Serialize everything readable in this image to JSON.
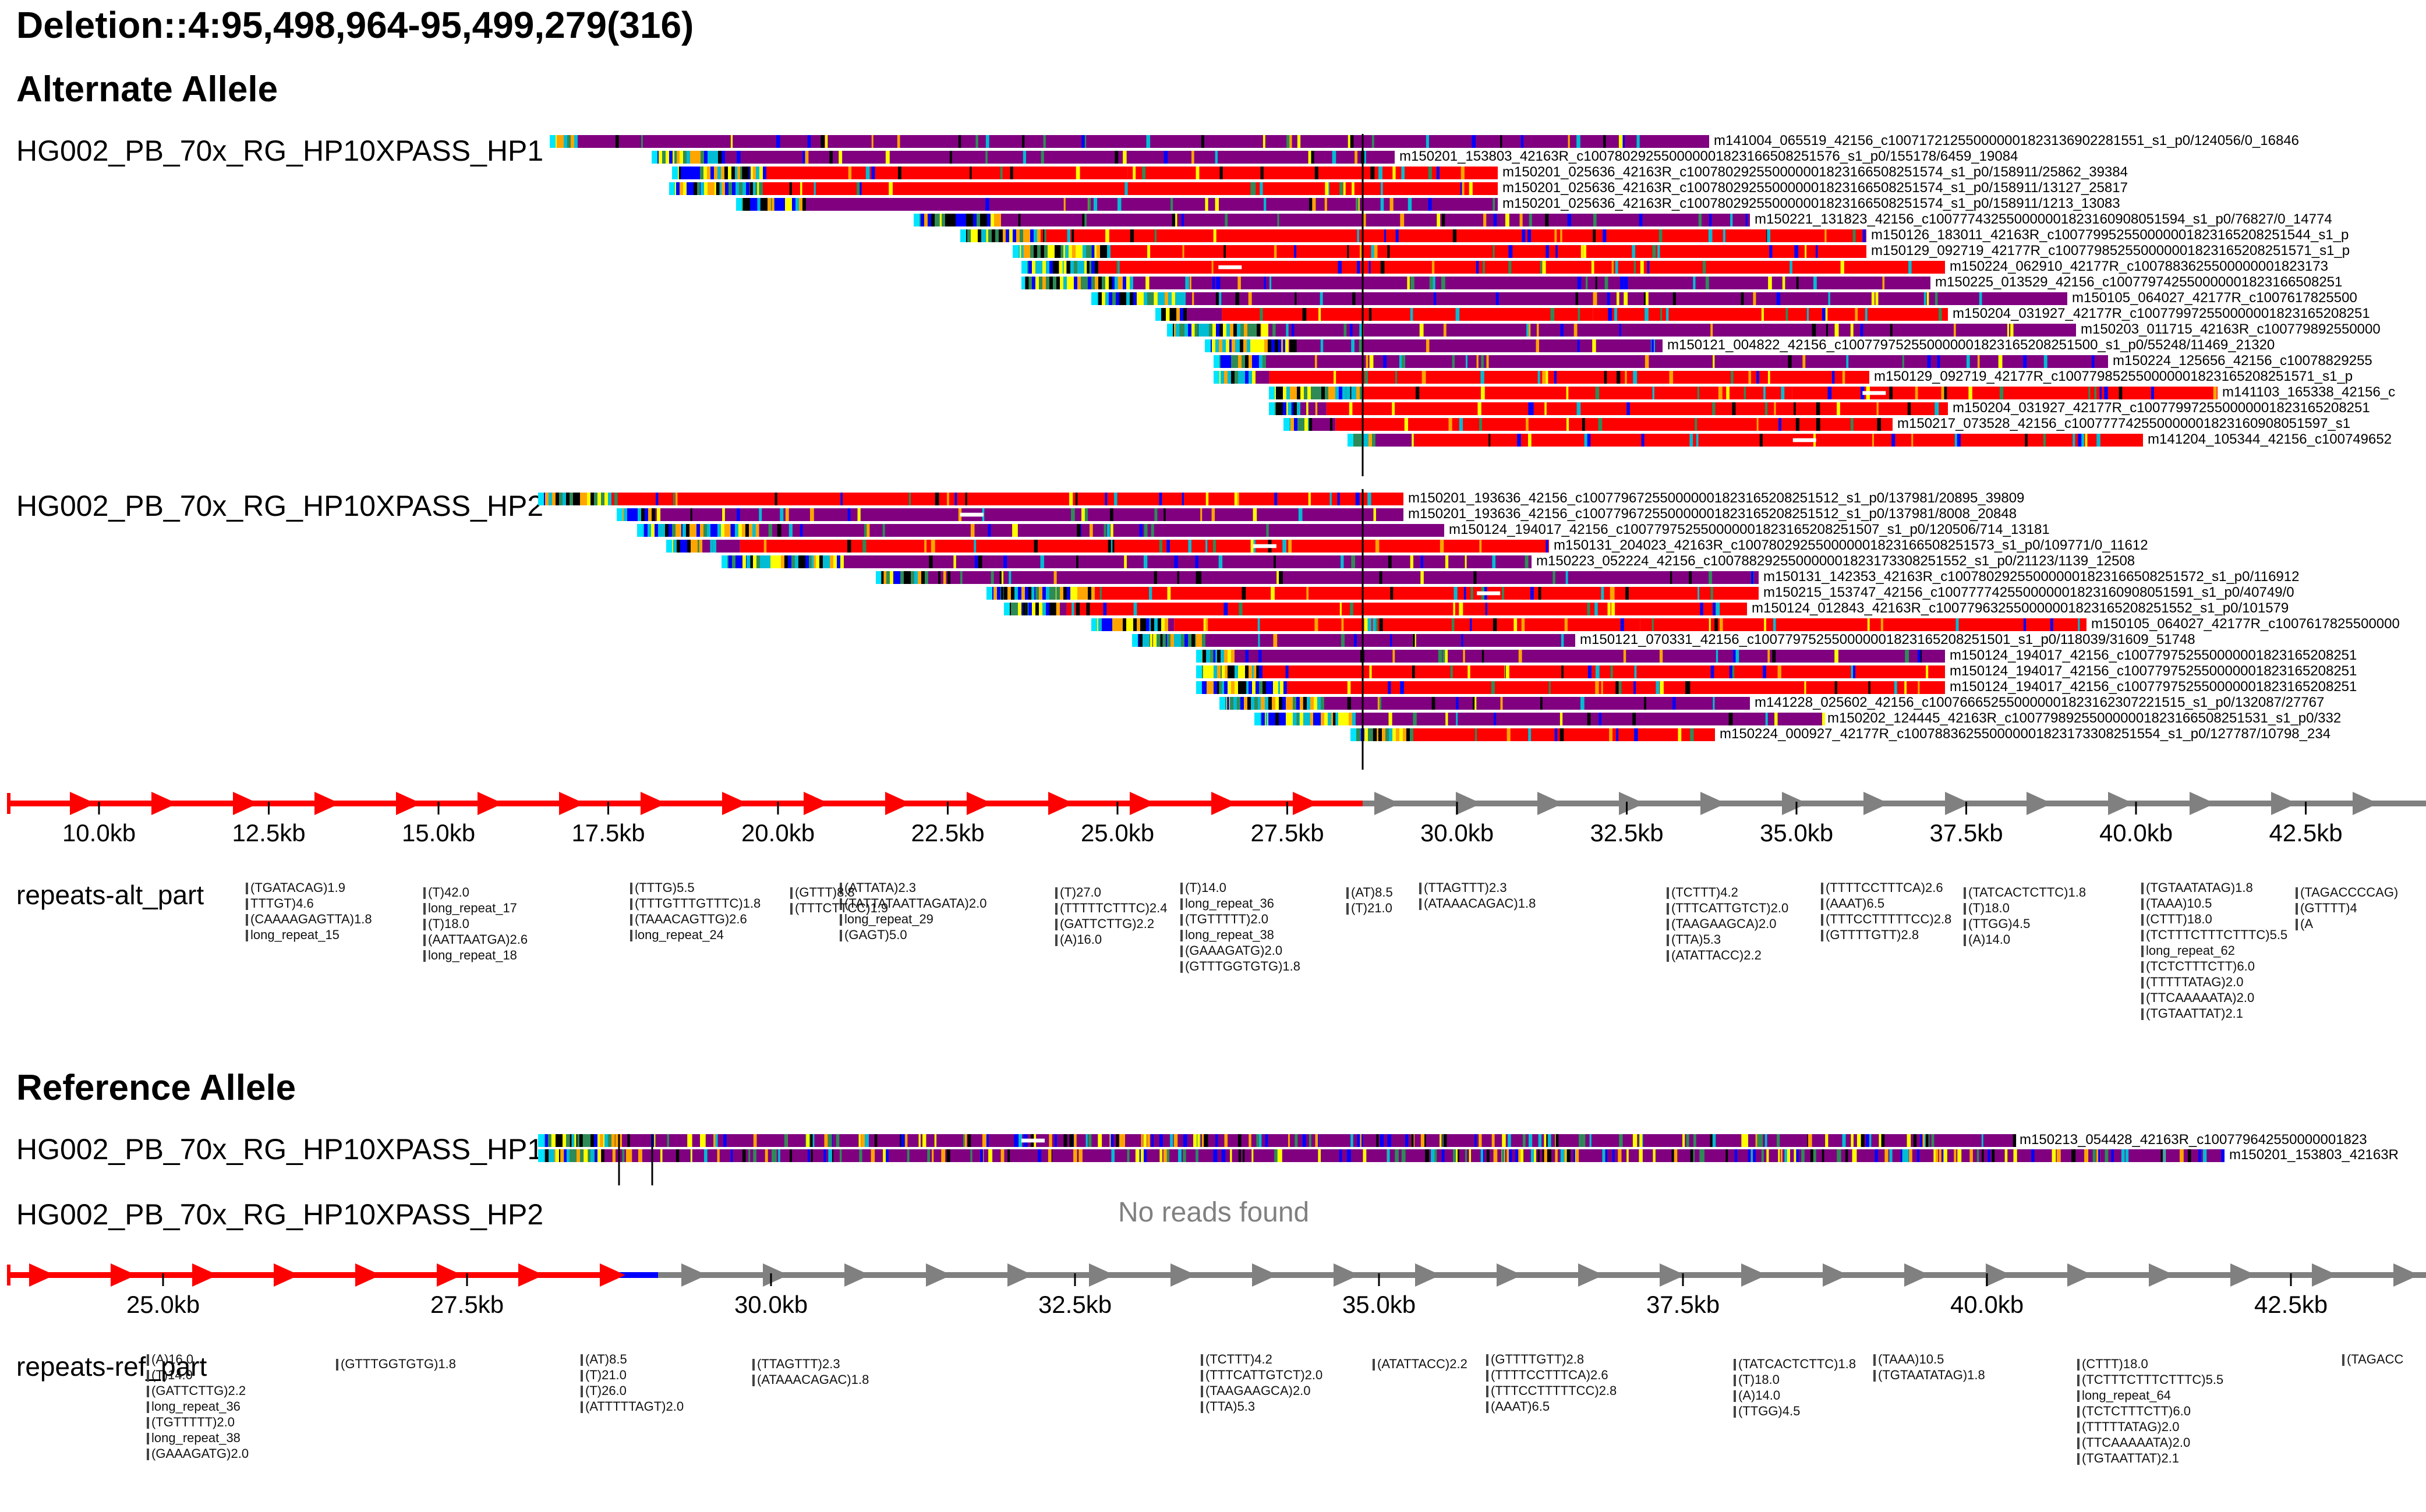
{
  "title": "Deletion::4:95,498,964-95,499,279(316)",
  "sections": {
    "alt": {
      "title": "Alternate Allele",
      "hp1": {
        "label": "HG002_PB_70x_RG_HP10XPASS_HP1",
        "reads": [
          "m141004_065519_42156_c1007172125500000018231369022815​51_s1_p0/124056/0_16846",
          "m150201_153803_42163R_c100780292550000001823166508251576_s1_p0/155178/6459_19084",
          "m150201_025636_42163R_c100780292550000001823166508251574_s1_p0/158911/25862_39384",
          "m150201_025636_42163R_c100780292550000001823166508251574_s1_p0/158911/13127_25817",
          "m150201_025636_42163R_c100780292550000001823166508251574_s1_p0/158911/1213_13083",
          "m150221_131823_42156_c100777432550000001823160908051594_s1_p0/76827/0_14774",
          "m150126_183011_42163R_c100779952550000001823165208251544_s1_p",
          "m150129_092719_42177R_c100779852550000001823165208251571_s1_p",
          "m150224_062910_42177R_c1007883625500000001823173",
          "m150225_013529_42156_c100779742550000001823166508251",
          "m150105_064027_42177R_c1007617825500",
          "m150204_031927_42177R_c100779972550000001823165208251",
          "m150203_011715_42163R_c100779892550000",
          "m150121_004822_42156_c100779752550000001823165208251500_s1_p0/55248/11469_21320",
          "m150224_125656_42156_c10078829255",
          "m150129_092719_42177R_c100779852550000001823165208251571_s1_p",
          "m141103_165338_42156_c",
          "m150204_031927_42177R_c100779972550000001823165208251",
          "m150217_073528_42156_c100777742550000001823160908051597_s1",
          "m141204_105344_42156_c100749652"
        ]
      },
      "hp2": {
        "label": "HG002_PB_70x_RG_HP10XPASS_HP2",
        "reads": [
          "m150201_193636_42156_c100779672550000001823165208251512_s1_p0/137981/20895_39809",
          "m150201_193636_42156_c100779672550000001823165208251512_s1_p0/137981/8008_20848",
          "m150124_194017_42156_c100779752550000001823165208251507_s1_p0/120506/714_13181",
          "m150131_204023_42163R_c100780292550000001823166508251573_s1_p0/109771/0_11612",
          "m150223_052224_42156_c100788292550000001823173308251552_s1_p0/21123/1139_12508",
          "m150131_142353_42163R_c100780292550000001823166508251572_s1_p0/116912",
          "m150215_153747_42156_c100777742550000001823160908051591_s1_p0/40749/0",
          "m150124_012843_42163R_c100779632550000001823165208251552_s1_p0/101579",
          "m150105_064027_42177R_c1007617825500000",
          "m150121_070331_42156_c100779752550000001823165208251501_s1_p0/118039/31609_51748",
          "m150124_194017_42156_c100779752550000001823165208251",
          "m150124_194017_42156_c100779752550000001823165208251",
          "m150124_194017_42156_c100779752550000001823165208251",
          "m141228_025602_42156_c100766652550000001823162307221515_s1_p0/132087/27767",
          "m150202_124445_42163R_c100779892550000001823166508251531_s1_p0/332",
          "m150224_000927_42177R_c100788362550000001823173308251554_s1_p0/127787/10798_234"
        ]
      },
      "axis_ticks": [
        "10.0kb",
        "12.5kb",
        "15.0kb",
        "17.5kb",
        "20.0kb",
        "22.5kb",
        "25.0kb",
        "27.5kb",
        "30.0kb",
        "32.5kb",
        "35.0kb",
        "37.5kb",
        "40.0kb",
        "42.5kb"
      ],
      "repeats_label": "repeats-alt_part",
      "repeats": [
        [
          "(TGATACAG)1.9",
          "TTTGT)4.6",
          "(CAAAAGAGTTA)1.8",
          "long_repeat_15"
        ],
        [
          "(T)42.0",
          "long_repeat_17",
          "(T)18.0",
          "(AATTAATGA)2.6",
          "long_repeat_18"
        ],
        [
          "(TTTG)5.5",
          "(TTTGTTTGTTTC)1.8",
          "(TAAACAGTTG)2.6",
          "long_repeat_24"
        ],
        [
          "(GTTT)8.8",
          "(TTTCTTCC)1.9"
        ],
        [
          "(ATTATA)2.3",
          "(TATTATAATTAGATA)2.0",
          "long_repeat_29",
          "(GAGT)5.0"
        ],
        [
          "(T)27.0",
          "(TTTTTCTTTC)2.4",
          "(GATTCTTG)2.2",
          "(A)16.0"
        ],
        [
          "(T)14.0",
          "long_repeat_36",
          "(TGTTTTT)2.0",
          "long_repeat_38",
          "(GAAAGATG)2.0",
          "(GTTTGGTGTG)1.8"
        ],
        [
          "(AT)8.5",
          "(T)21.0"
        ],
        [
          "(TTAGTTT)2.3",
          "(ATAAACAGAC)1.8"
        ],
        [
          "(TCTTT)4.2",
          "(TTTCATTGTCT)2.0",
          "(TAAGAAGCA)2.0",
          "(TTA)5.3",
          "(ATATTACC)2.2"
        ],
        [
          "(TTTTCCTTTCA)2.6",
          "(AAAT)6.5",
          "(TTTCCTTTTTCC)2.8",
          "(GTTTTGTT)2.8"
        ],
        [
          "(TATCACTCTTC)1.8",
          "(T)18.0",
          "(TTGG)4.5",
          "(A)14.0"
        ],
        [
          "(TGTAATATAG)1.8",
          "(TAAA)10.5",
          "(CTTT)18.0",
          "(TCTTTCTTTCTTTC)5.5",
          "long_repeat_62",
          "(TCTCTTTCTT)6.0",
          "(TTTTTATAG)2.0",
          "(TTCAAAAATA)2.0",
          "(TGTAATTAT)2.1"
        ],
        [
          "(TAGACCCCAG)",
          "(GTTTT)4",
          "(A"
        ]
      ]
    },
    "ref": {
      "title": "Reference Allele",
      "hp1": {
        "label": "HG002_PB_70x_RG_HP10XPASS_HP1",
        "reads": [
          "m150213_054428_42163R_c100779642550000001823",
          "m150201_153803_42163R"
        ]
      },
      "hp2": {
        "label": "HG002_PB_70x_RG_HP10XPASS_HP2",
        "empty_message": "No reads found"
      },
      "axis_ticks": [
        "25.0kb",
        "27.5kb",
        "30.0kb",
        "32.5kb",
        "35.0kb",
        "37.5kb",
        "40.0kb",
        "42.5kb"
      ],
      "repeats_label": "repeats-ref_part",
      "repeats": [
        [
          "(A)16.0",
          "(T)14.0",
          "(GATTCTTG)2.2",
          "long_repeat_36",
          "(TGTTTTT)2.0",
          "long_repeat_38",
          "(GAAAGATG)2.0"
        ],
        [
          "(GTTTGGTGTG)1.8"
        ],
        [
          "(AT)8.5",
          "(T)21.0",
          "(T)26.0",
          "(ATTTTTAGT)2.0"
        ],
        [
          "(TTAGTTT)2.3",
          "(ATAAACAGAC)1.8"
        ],
        [
          "(TCTTT)4.2",
          "(TTTCATTGTCT)2.0",
          "(TAAGAAGCA)2.0",
          "(TTA)5.3"
        ],
        [
          "(ATATTACC)2.2"
        ],
        [
          "(GTTTTGTT)2.8",
          "(TTTTCCTTTCA)2.6",
          "(TTTCCTTTTTCC)2.8",
          "(AAAT)6.5"
        ],
        [
          "(TATCACTCTTC)1.8",
          "(T)18.0",
          "(A)14.0",
          "(TTGG)4.5"
        ],
        [
          "(TAAA)10.5",
          "(TGTAATATAG)1.8"
        ],
        [
          "(CTTT)18.0",
          "(TCTTTCTTTCTTTC)5.5",
          "long_repeat_64",
          "(TCTCTTTCTT)6.0",
          "(TTTTTATAG)2.0",
          "(TTCAAAAATA)2.0",
          "(TGTAATTAT)2.1"
        ],
        [
          "(TAGACC"
        ]
      ]
    }
  },
  "colors": {
    "purple": "#800080",
    "red": "#ff0000",
    "cyan": "#00e5ff",
    "blue": "#0000ff",
    "orange": "#ffa500",
    "grey": "#808080"
  }
}
